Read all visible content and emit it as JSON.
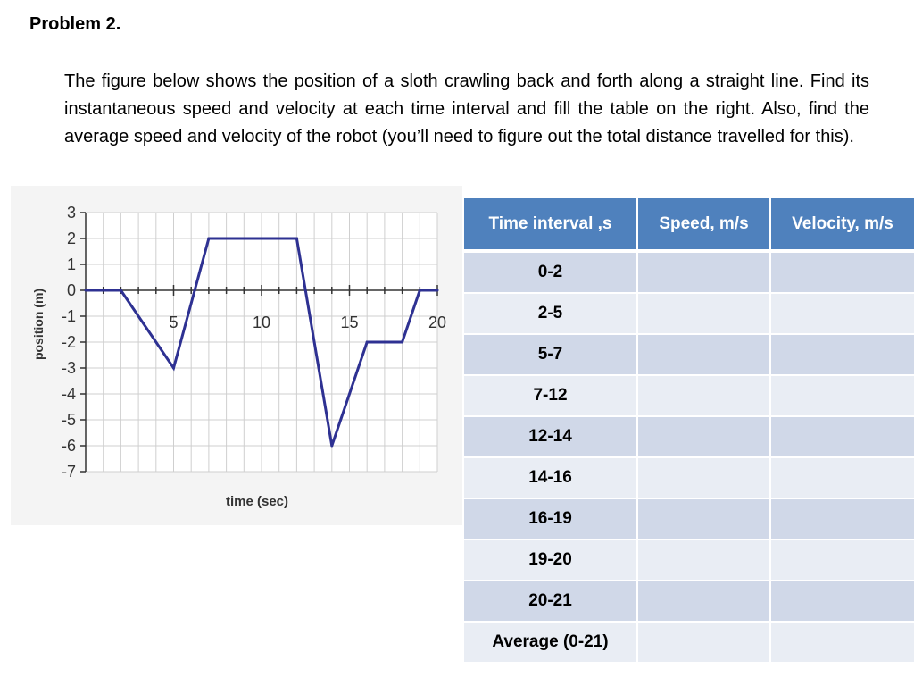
{
  "problem": {
    "title": "Problem 2.",
    "text": "The figure below shows the position of a sloth crawling back and forth along a straight line.  Find its instantaneous speed and velocity at each time interval and fill the table on the right. Also, find the average speed and velocity of the robot (you’ll need to figure out the total distance travelled for this)."
  },
  "table": {
    "headers": [
      "Time interval ,s",
      "Speed, m/s",
      "Velocity, m/s"
    ],
    "rows": [
      {
        "interval": "0-2",
        "speed": "",
        "velocity": ""
      },
      {
        "interval": "2-5",
        "speed": "",
        "velocity": ""
      },
      {
        "interval": "5-7",
        "speed": "",
        "velocity": ""
      },
      {
        "interval": "7-12",
        "speed": "",
        "velocity": ""
      },
      {
        "interval": "12-14",
        "speed": "",
        "velocity": ""
      },
      {
        "interval": "14-16",
        "speed": "",
        "velocity": ""
      },
      {
        "interval": "16-19",
        "speed": "",
        "velocity": ""
      },
      {
        "interval": "19-20",
        "speed": "",
        "velocity": ""
      },
      {
        "interval": "20-21",
        "speed": "",
        "velocity": ""
      },
      {
        "interval": "Average (0-21)",
        "speed": "",
        "velocity": ""
      }
    ],
    "colors": {
      "header": "#4f81bd",
      "row_odd": "#d0d8e8",
      "row_even": "#e9edf4"
    }
  },
  "chart_data": {
    "type": "line",
    "title": "",
    "xlabel": "time (sec)",
    "ylabel": "position (m)",
    "xlim": [
      0,
      20
    ],
    "ylim": [
      -7,
      3
    ],
    "xticks": [
      5,
      10,
      15,
      20
    ],
    "yticks": [
      3,
      2,
      1,
      0,
      -1,
      -2,
      -3,
      -4,
      -5,
      -6,
      -7
    ],
    "grid": true,
    "series": [
      {
        "x": [
          0,
          2,
          5,
          7,
          12,
          14,
          16,
          18,
          19,
          20
        ],
        "y": [
          0,
          0,
          -3,
          2,
          2,
          -6,
          -2,
          -2,
          0,
          0
        ],
        "color": "#2e3192"
      }
    ]
  }
}
